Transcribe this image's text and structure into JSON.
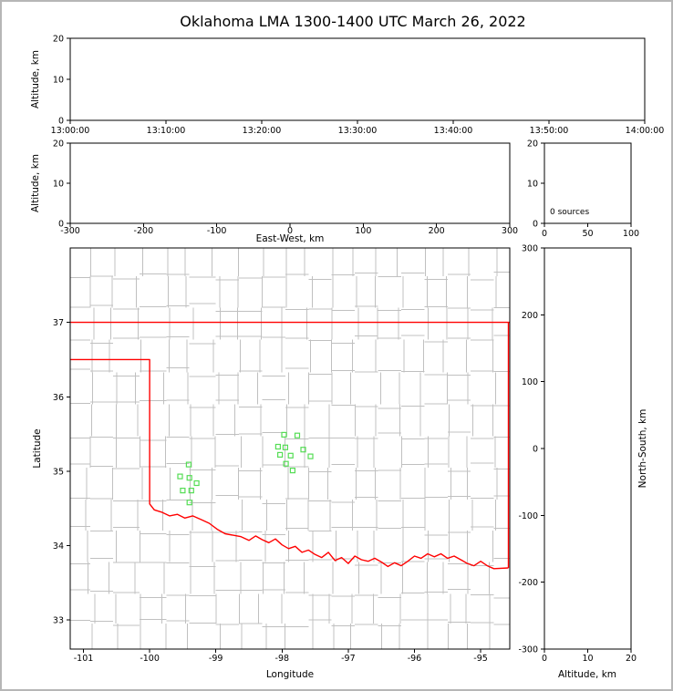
{
  "title": "Oklahoma LMA 1300-1400 UTC March 26, 2022",
  "colors": {
    "axis": "#000000",
    "background": "#ffffff",
    "figure_border": "#b6b6b6",
    "county": "#c0c0c0",
    "state_border": "#ff0000",
    "station": "#55dd55"
  },
  "chart_data": [
    {
      "id": "time_height",
      "type": "scatter",
      "xlabel": "",
      "ylabel": "Altitude, km",
      "x_tick_labels": [
        "13:00:00",
        "13:10:00",
        "13:20:00",
        "13:30:00",
        "13:40:00",
        "13:50:00",
        "14:00:00"
      ],
      "yticks": [
        0,
        10,
        20
      ],
      "ylim": [
        0,
        20
      ],
      "points": []
    },
    {
      "id": "ew_height",
      "type": "scatter",
      "xlabel": "East-West, km",
      "ylabel": "Altitude, km",
      "xticks": [
        -300,
        -200,
        -100,
        0,
        100,
        200,
        300
      ],
      "xlim": [
        -300,
        300
      ],
      "yticks": [
        0,
        10,
        20
      ],
      "ylim": [
        0,
        20
      ],
      "points": []
    },
    {
      "id": "alt_histogram",
      "type": "line",
      "annotation": "0 sources",
      "xticks": [
        0,
        50,
        100
      ],
      "xlim": [
        0,
        100
      ],
      "yticks": [
        0,
        10,
        20
      ],
      "ylim": [
        0,
        20
      ],
      "points": []
    },
    {
      "id": "plan_map",
      "type": "scatter",
      "xlabel": "Longitude",
      "ylabel": "Latitude",
      "xticks": [
        -101,
        -100,
        -99,
        -98,
        -97,
        -96,
        -95
      ],
      "xlim": [
        -101.2,
        -94.56
      ],
      "yticks": [
        33,
        34,
        35,
        36,
        37
      ],
      "ylim": [
        32.61,
        38.0
      ],
      "stations": [
        {
          "lon": -99.41,
          "lat": 35.09
        },
        {
          "lon": -99.54,
          "lat": 34.93
        },
        {
          "lon": -99.4,
          "lat": 34.91
        },
        {
          "lon": -99.29,
          "lat": 34.84
        },
        {
          "lon": -99.5,
          "lat": 34.74
        },
        {
          "lon": -99.37,
          "lat": 34.74
        },
        {
          "lon": -99.4,
          "lat": 34.58
        },
        {
          "lon": -97.97,
          "lat": 35.49
        },
        {
          "lon": -97.77,
          "lat": 35.48
        },
        {
          "lon": -98.06,
          "lat": 35.33
        },
        {
          "lon": -97.95,
          "lat": 35.32
        },
        {
          "lon": -97.68,
          "lat": 35.29
        },
        {
          "lon": -98.03,
          "lat": 35.22
        },
        {
          "lon": -97.87,
          "lat": 35.21
        },
        {
          "lon": -97.57,
          "lat": 35.2
        },
        {
          "lon": -97.94,
          "lat": 35.1
        },
        {
          "lon": -97.84,
          "lat": 35.01
        }
      ],
      "state_border": [
        {
          "name": "oklahoma-north-border",
          "points": [
            [
              -101.2,
              37.0
            ],
            [
              -94.56,
              37.0
            ]
          ]
        },
        {
          "name": "oklahoma-east-border",
          "points": [
            [
              -94.58,
              37.0
            ],
            [
              -94.58,
              33.7
            ]
          ]
        },
        {
          "name": "oklahoma-west-south-border",
          "points": [
            [
              -101.2,
              36.5
            ],
            [
              -100.0,
              36.5
            ],
            [
              -100.0,
              34.56
            ],
            [
              -99.93,
              34.48
            ],
            [
              -99.82,
              34.45
            ],
            [
              -99.7,
              34.4
            ],
            [
              -99.58,
              34.42
            ],
            [
              -99.47,
              34.37
            ],
            [
              -99.35,
              34.4
            ],
            [
              -99.22,
              34.35
            ],
            [
              -99.1,
              34.3
            ],
            [
              -98.98,
              34.22
            ],
            [
              -98.86,
              34.16
            ],
            [
              -98.74,
              34.14
            ],
            [
              -98.62,
              34.12
            ],
            [
              -98.5,
              34.07
            ],
            [
              -98.4,
              34.13
            ],
            [
              -98.3,
              34.08
            ],
            [
              -98.2,
              34.04
            ],
            [
              -98.1,
              34.09
            ],
            [
              -98.0,
              34.01
            ],
            [
              -97.9,
              33.96
            ],
            [
              -97.8,
              33.99
            ],
            [
              -97.7,
              33.91
            ],
            [
              -97.6,
              33.94
            ],
            [
              -97.5,
              33.88
            ],
            [
              -97.4,
              33.84
            ],
            [
              -97.3,
              33.91
            ],
            [
              -97.2,
              33.8
            ],
            [
              -97.1,
              33.84
            ],
            [
              -97.0,
              33.76
            ],
            [
              -96.9,
              33.86
            ],
            [
              -96.8,
              33.81
            ],
            [
              -96.7,
              33.79
            ],
            [
              -96.6,
              33.83
            ],
            [
              -96.5,
              33.78
            ],
            [
              -96.4,
              33.72
            ],
            [
              -96.3,
              33.77
            ],
            [
              -96.2,
              33.73
            ],
            [
              -96.1,
              33.79
            ],
            [
              -96.0,
              33.86
            ],
            [
              -95.9,
              33.83
            ],
            [
              -95.8,
              33.89
            ],
            [
              -95.7,
              33.85
            ],
            [
              -95.6,
              33.89
            ],
            [
              -95.5,
              33.83
            ],
            [
              -95.4,
              33.86
            ],
            [
              -95.3,
              33.81
            ],
            [
              -95.2,
              33.76
            ],
            [
              -95.1,
              33.73
            ],
            [
              -95.0,
              33.79
            ],
            [
              -94.9,
              33.73
            ],
            [
              -94.8,
              33.69
            ],
            [
              -94.58,
              33.7
            ]
          ]
        }
      ],
      "county_grid": {
        "color": "#c0c0c0",
        "lons": [
          -100.9,
          -100.55,
          -100.15,
          -99.75,
          -99.4,
          -99.0,
          -98.65,
          -98.3,
          -97.95,
          -97.6,
          -97.25,
          -96.9,
          -96.55,
          -96.2,
          -95.85,
          -95.5,
          -95.15,
          -94.8
        ],
        "lats": [
          37.62,
          37.2,
          36.77,
          36.33,
          35.9,
          35.47,
          35.05,
          34.62,
          34.2,
          33.78,
          33.35,
          32.95
        ]
      }
    },
    {
      "id": "ns_height",
      "type": "scatter",
      "xlabel": "Altitude, km",
      "ylabel_right": "North-South, km",
      "xticks": [
        0,
        10,
        20
      ],
      "xlim": [
        0,
        20
      ],
      "yticks": [
        -300,
        -200,
        -100,
        0,
        100,
        200,
        300
      ],
      "ylim": [
        -300,
        300
      ],
      "points": []
    }
  ]
}
